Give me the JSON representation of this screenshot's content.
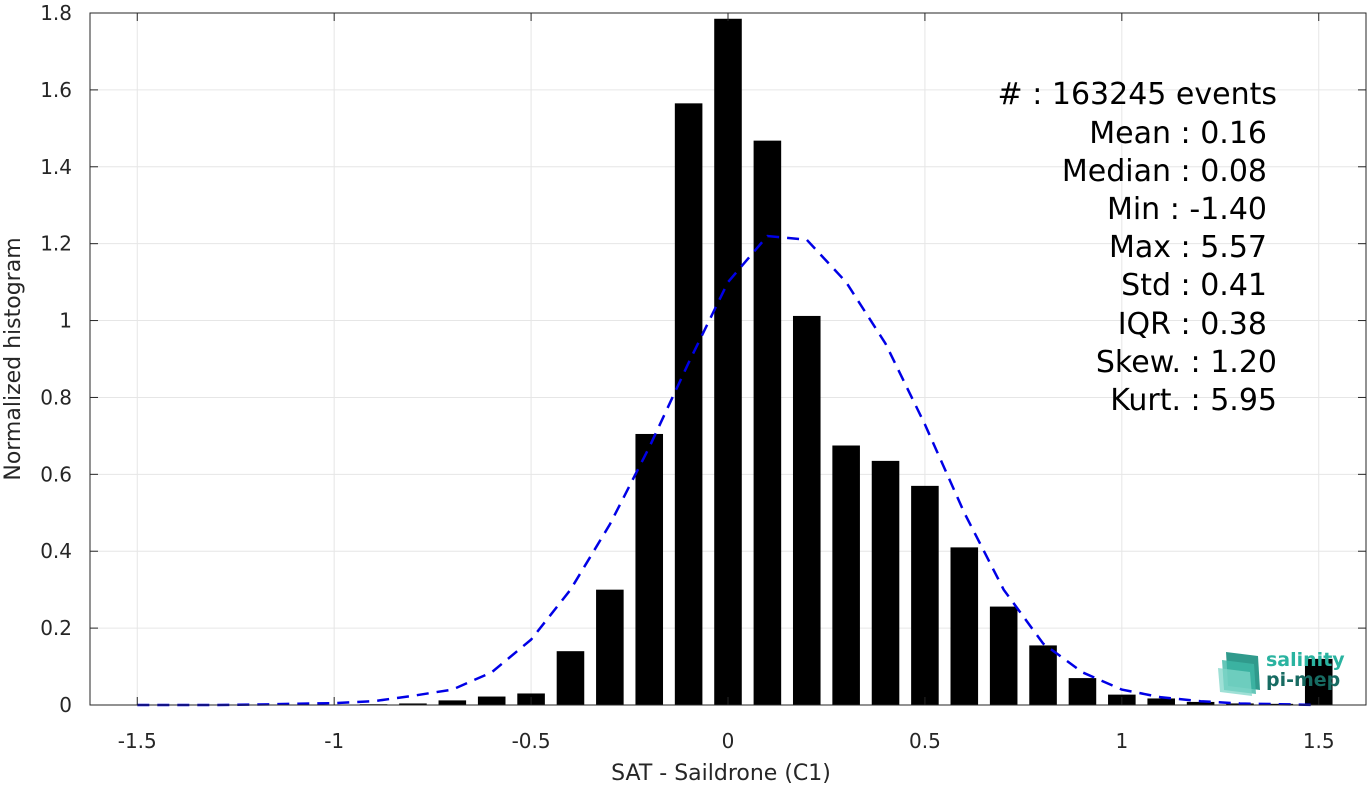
{
  "chart_data": {
    "type": "bar",
    "xlabel": "SAT - Saildrone (C1)",
    "ylabel": "Normalized histogram",
    "xlim": [
      -1.62,
      1.62
    ],
    "ylim": [
      0,
      1.8
    ],
    "xticks": [
      -1.5,
      -1,
      -0.5,
      0,
      0.5,
      1,
      1.5
    ],
    "xtick_labels": [
      "-1.5",
      "-1",
      "-0.5",
      "0",
      "0.5",
      "1",
      "1.5"
    ],
    "yticks": [
      0,
      0.2,
      0.4,
      0.6,
      0.8,
      1,
      1.2,
      1.4,
      1.6,
      1.8
    ],
    "ytick_labels": [
      "0",
      "0.2",
      "0.4",
      "0.6",
      "0.8",
      "1",
      "1.2",
      "1.4",
      "1.6",
      "1.8"
    ],
    "grid": true,
    "bar_width": 0.07,
    "bar_color": "#000000",
    "bars": {
      "x": [
        -1.5,
        -1.4,
        -1.3,
        -1.2,
        -1.1,
        -1.0,
        -0.9,
        -0.8,
        -0.7,
        -0.6,
        -0.5,
        -0.4,
        -0.3,
        -0.2,
        -0.1,
        0.0,
        0.1,
        0.2,
        0.3,
        0.4,
        0.5,
        0.6,
        0.7,
        0.8,
        0.9,
        1.0,
        1.1,
        1.2,
        1.3,
        1.4,
        1.5
      ],
      "values": [
        0.0,
        0.0,
        0.0,
        0.0,
        0.0,
        0.001,
        0.002,
        0.004,
        0.012,
        0.022,
        0.03,
        0.14,
        0.3,
        0.705,
        1.565,
        1.785,
        1.468,
        1.012,
        0.675,
        0.635,
        0.57,
        0.41,
        0.256,
        0.155,
        0.07,
        0.027,
        0.017,
        0.008,
        0.004,
        0.003,
        0.12
      ]
    },
    "fit_curve": {
      "style": "dashed",
      "color": "#0000e6",
      "x": [
        -1.5,
        -1.4,
        -1.3,
        -1.2,
        -1.1,
        -1.0,
        -0.9,
        -0.8,
        -0.7,
        -0.6,
        -0.5,
        -0.4,
        -0.3,
        -0.2,
        -0.1,
        0.0,
        0.1,
        0.2,
        0.3,
        0.4,
        0.5,
        0.6,
        0.7,
        0.8,
        0.9,
        1.0,
        1.1,
        1.2,
        1.3,
        1.4,
        1.5
      ],
      "y": [
        0.0,
        0.0,
        0.0,
        0.001,
        0.003,
        0.005,
        0.01,
        0.024,
        0.04,
        0.085,
        0.17,
        0.3,
        0.47,
        0.67,
        0.89,
        1.1,
        1.22,
        1.21,
        1.1,
        0.94,
        0.73,
        0.5,
        0.3,
        0.16,
        0.085,
        0.04,
        0.02,
        0.01,
        0.004,
        0.002,
        0.0
      ]
    },
    "stats": [
      {
        "label": "#  : 163245 events"
      },
      {
        "label": "Mean : 0.16"
      },
      {
        "label": "Median : 0.08"
      },
      {
        "label": "Min : -1.40"
      },
      {
        "label": "Max : 5.57"
      },
      {
        "label": "Std : 0.41"
      },
      {
        "label": "IQR : 0.38"
      },
      {
        "label": "Skew. : 1.20"
      },
      {
        "label": "Kurt. : 5.95"
      }
    ],
    "logo": {
      "line1": "salinity",
      "line2": "pi-mep"
    }
  }
}
